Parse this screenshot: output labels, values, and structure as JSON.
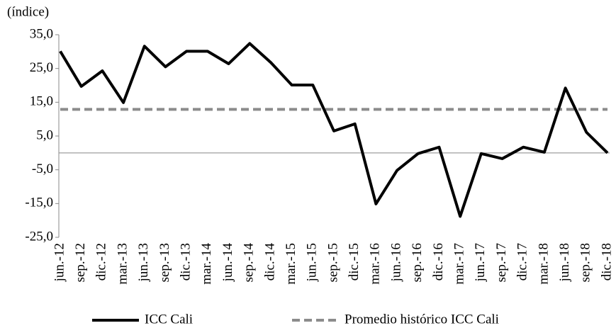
{
  "chart_data": {
    "type": "line",
    "y_label": "(índice)",
    "categories": [
      "jun.-12",
      "sep.-12",
      "dic.-12",
      "mar.-13",
      "jun.-13",
      "sep.-13",
      "dic.-13",
      "mar.-14",
      "jun.-14",
      "sep.-14",
      "dic.-14",
      "mar.-15",
      "jun.-15",
      "sep.-15",
      "dic.-15",
      "mar.-16",
      "jun.-16",
      "sep.-16",
      "dic.-16",
      "mar.-17",
      "jun.-17",
      "sep.-17",
      "dic.-17",
      "mar.-18",
      "jun.-18",
      "sep.-18",
      "dic.-18"
    ],
    "series": [
      {
        "name": "ICC Cali",
        "color": "#000000",
        "dash": false,
        "values": [
          30.1,
          19.7,
          24.3,
          14.9,
          31.6,
          25.5,
          30.1,
          30.1,
          26.4,
          32.4,
          26.8,
          20.1,
          20.1,
          6.5,
          8.6,
          -15.1,
          -5.2,
          -0.2,
          1.7,
          -18.8,
          -0.2,
          -1.7,
          1.7,
          0.2,
          19.2,
          6.1,
          0.0
        ]
      },
      {
        "name": "Promedio histórico ICC Cali",
        "color": "#8c8c8c",
        "dash": true,
        "values": [
          12.9,
          12.9,
          12.9,
          12.9,
          12.9,
          12.9,
          12.9,
          12.9,
          12.9,
          12.9,
          12.9,
          12.9,
          12.9,
          12.9,
          12.9,
          12.9,
          12.9,
          12.9,
          12.9,
          12.9,
          12.9,
          12.9,
          12.9,
          12.9,
          12.9,
          12.9,
          12.9
        ]
      }
    ],
    "ylim": [
      -25,
      35
    ],
    "yticks": [
      {
        "value": -25,
        "label": "-25,0"
      },
      {
        "value": -15,
        "label": "-15,0"
      },
      {
        "value": -5,
        "label": "-5,0"
      },
      {
        "value": 5,
        "label": "5,0"
      },
      {
        "value": 15,
        "label": "15,0"
      },
      {
        "value": 25,
        "label": "25,0"
      },
      {
        "value": 35,
        "label": "35,0"
      }
    ],
    "legend": "bottom"
  }
}
